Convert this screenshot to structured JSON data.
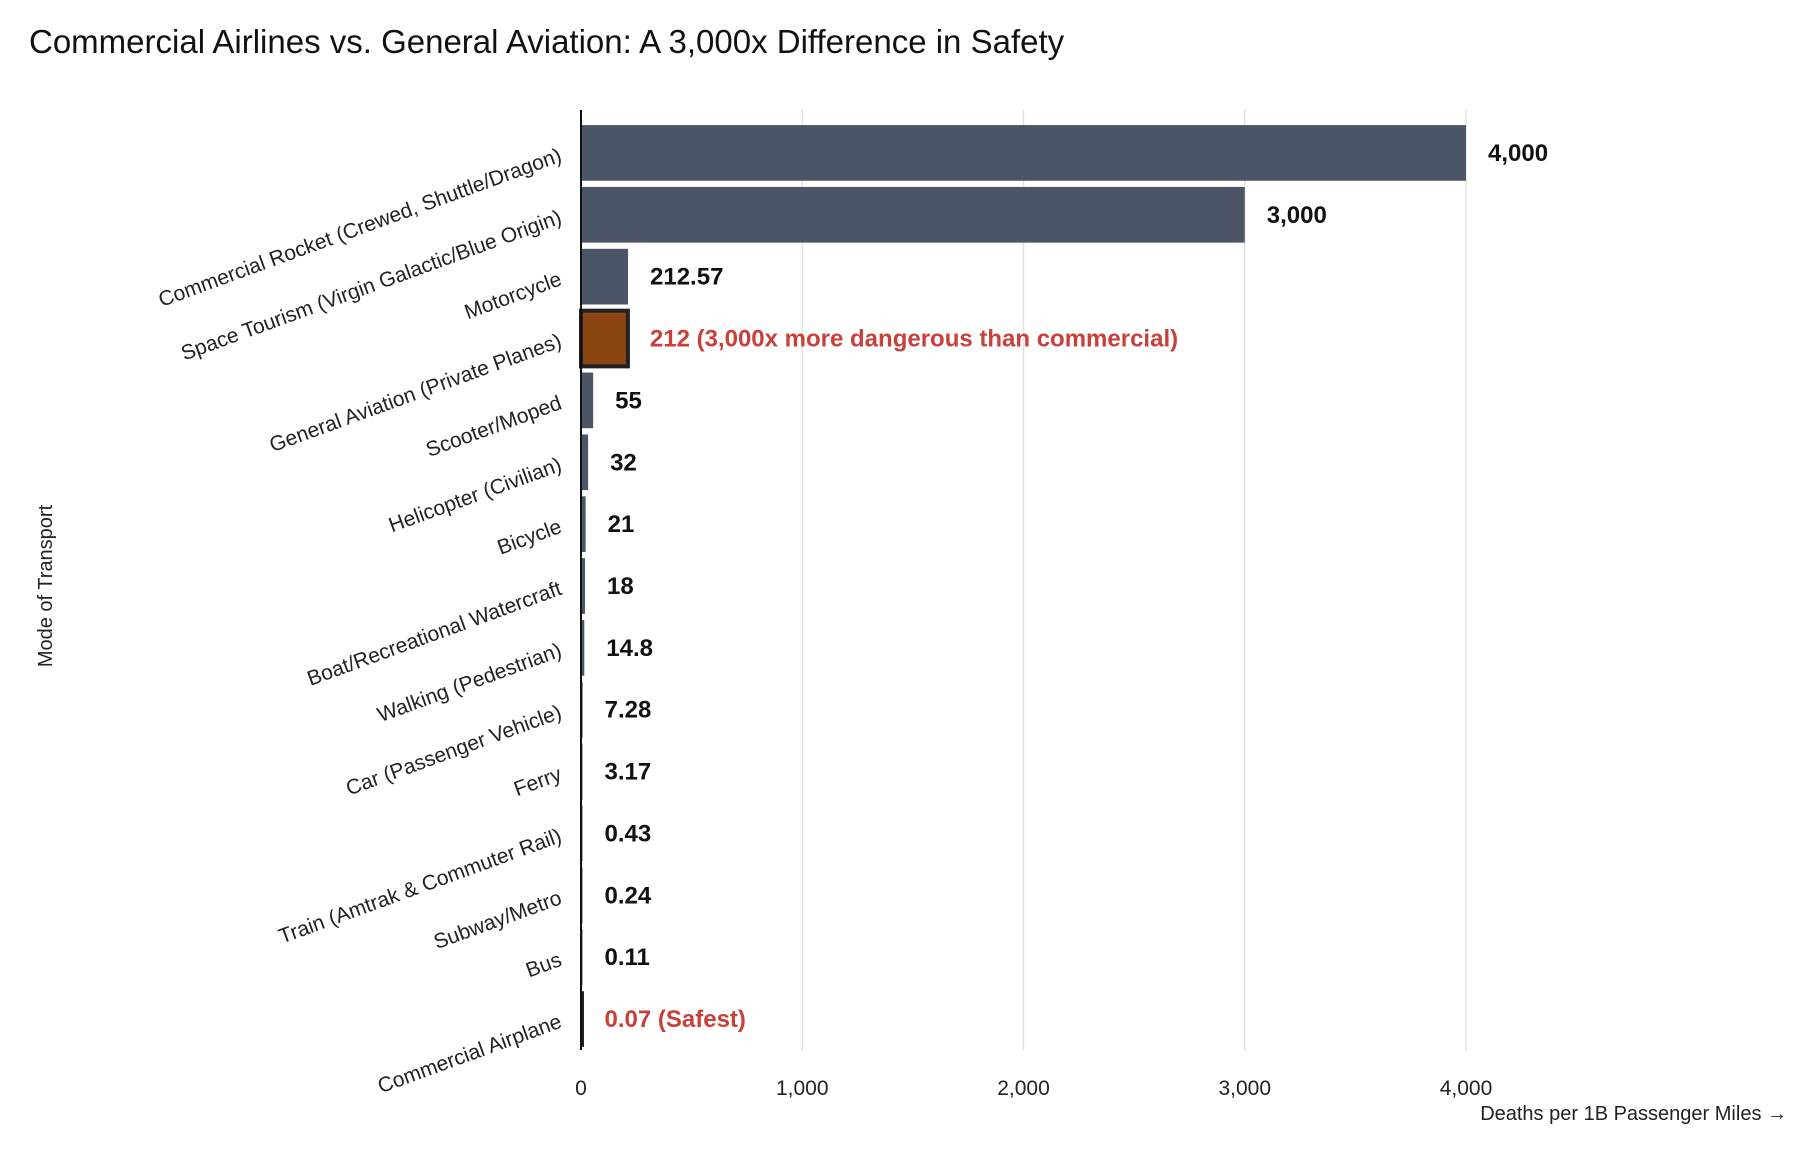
{
  "chart_data": {
    "type": "bar",
    "orientation": "horizontal",
    "title": "Commercial Airlines vs. General Aviation: A 3,000x Difference in Safety",
    "xlabel": "Deaths per 1B Passenger Miles →",
    "ylabel": "Mode of Transport",
    "xlim": [
      0,
      4000
    ],
    "xticks": [
      0,
      1000,
      2000,
      3000,
      4000
    ],
    "xtick_labels": [
      "0",
      "1,000",
      "2,000",
      "3,000",
      "4,000"
    ],
    "grid": true,
    "categories": [
      "Commercial Rocket (Crewed, Shuttle/Dragon)",
      "Space Tourism (Virgin Galactic/Blue Origin)",
      "Motorcycle",
      "General Aviation (Private Planes)",
      "Scooter/Moped",
      "Helicopter (Civilian)",
      "Bicycle",
      "Boat/Recreational Watercraft",
      "Walking (Pedestrian)",
      "Car (Passenger Vehicle)",
      "Ferry",
      "Train (Amtrak & Commuter Rail)",
      "Subway/Metro",
      "Bus",
      "Commercial Airplane"
    ],
    "values": [
      4000,
      3000,
      212.57,
      212,
      55,
      32,
      21,
      18,
      14.8,
      7.28,
      3.17,
      0.43,
      0.24,
      0.11,
      0.07
    ],
    "value_labels": [
      "4,000",
      "3,000",
      "212.57",
      "212 (3,000x more dangerous than commercial)",
      "55",
      "32",
      "21",
      "18",
      "14.8",
      "7.28",
      "3.17",
      "0.43",
      "0.24",
      "0.11",
      "0.07 (Safest)"
    ],
    "highlight": [
      "",
      "",
      "",
      "general-aviation",
      "",
      "",
      "",
      "",
      "",
      "",
      "",
      "",
      "",
      "",
      "commercial-airplane"
    ],
    "colors": {
      "bar": "#4b5565",
      "highlight_bar": "#8b4513",
      "highlight_outline": "#222222",
      "label": "#111111",
      "highlight_label": "#c9403a",
      "grid": "#e3e3e3"
    }
  }
}
